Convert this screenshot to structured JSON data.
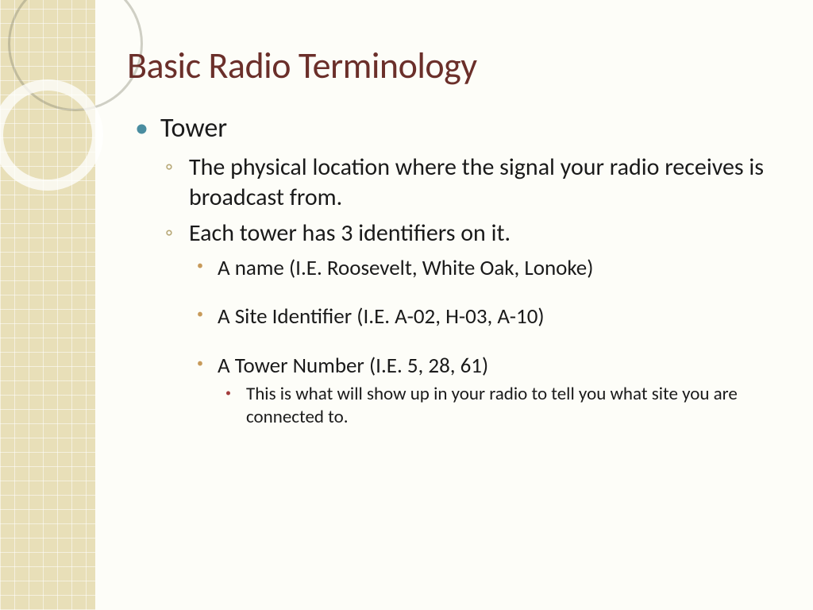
{
  "title": "Basic Radio Terminology",
  "colors": {
    "title": "#6b2f2a",
    "bullet_l1": "#4a8da0",
    "bullet_l2": "#b8a978",
    "bullet_l3": "#c79a5a",
    "bullet_l4": "#a33c3c",
    "sidebar_bg": "#e8dfb8",
    "page_bg": "#fdfdf8",
    "text": "#1a1a1a"
  },
  "typography": {
    "family": "Gill Sans",
    "title_size_pt": 40,
    "l1_size_pt": 28,
    "l2_size_pt": 24,
    "l3_size_pt": 22,
    "l4_size_pt": 18
  },
  "bullets": {
    "l1": {
      "text": "Tower",
      "children": [
        {
          "text": "The physical location where the signal your radio receives is broadcast from."
        },
        {
          "text": "Each tower has 3 identifiers on it.",
          "children": [
            {
              "text": "A name (I.E. Roosevelt, White Oak, Lonoke)"
            },
            {
              "text": "A Site Identifier (I.E.  A-02, H-03,  A-10)"
            },
            {
              "text": "A Tower Number (I.E. 5, 28, 61)",
              "children": [
                {
                  "text": "This is what will show up in your radio to tell you what site you are connected to."
                }
              ]
            }
          ]
        }
      ]
    }
  }
}
